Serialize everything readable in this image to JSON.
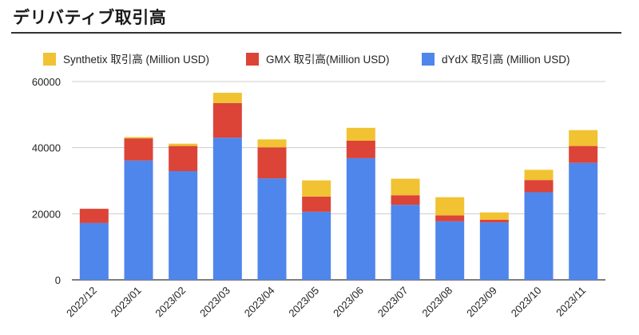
{
  "page": {
    "title": "デリバティブ取引高"
  },
  "colors": {
    "synthetix": "#F1C232",
    "gmx": "#DB4437",
    "dydx": "#4F86EC",
    "grid": "#cccccc",
    "axis": "#333333"
  },
  "chart_data": {
    "type": "bar",
    "stacked": true,
    "title": "",
    "xlabel": "",
    "ylabel": "",
    "ylim": [
      0,
      60000
    ],
    "yticks": [
      0,
      20000,
      40000,
      60000
    ],
    "grid": true,
    "legend": "top",
    "categories": [
      "2022/12",
      "2023/01",
      "2023/02",
      "2023/03",
      "2023/04",
      "2023/05",
      "2023/06",
      "2023/07",
      "2023/08",
      "2023/09",
      "2023/10",
      "2023/11"
    ],
    "series": [
      {
        "key": "dydx",
        "name": "dYdX 取引高 (Million USD)",
        "color": "#4F86EC",
        "values": [
          17200,
          36100,
          32900,
          43000,
          30700,
          20600,
          36800,
          22700,
          17700,
          17400,
          26500,
          35400
        ]
      },
      {
        "key": "gmx",
        "name": "GMX 取引高(Million USD)",
        "color": "#DB4437",
        "values": [
          4300,
          6700,
          7600,
          10500,
          9400,
          4600,
          5300,
          2900,
          1800,
          800,
          3700,
          5100
        ]
      },
      {
        "key": "synthetix",
        "name": "Synthetix 取引高 (Million USD)",
        "color": "#F1C232",
        "values": [
          0,
          400,
          700,
          3100,
          2400,
          4900,
          3900,
          5000,
          5500,
          2200,
          3100,
          4800
        ]
      }
    ],
    "legend_order": [
      "synthetix",
      "gmx",
      "dydx"
    ]
  }
}
